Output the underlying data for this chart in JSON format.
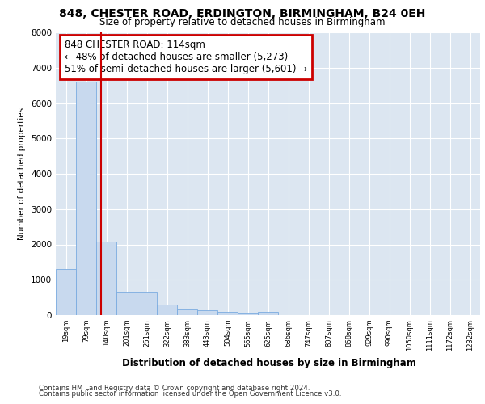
{
  "title_line1": "848, CHESTER ROAD, ERDINGTON, BIRMINGHAM, B24 0EH",
  "title_line2": "Size of property relative to detached houses in Birmingham",
  "xlabel": "Distribution of detached houses by size in Birmingham",
  "ylabel": "Number of detached properties",
  "footnote1": "Contains HM Land Registry data © Crown copyright and database right 2024.",
  "footnote2": "Contains public sector information licensed under the Open Government Licence v3.0.",
  "bin_labels": [
    "19sqm",
    "79sqm",
    "140sqm",
    "201sqm",
    "261sqm",
    "322sqm",
    "383sqm",
    "443sqm",
    "504sqm",
    "565sqm",
    "625sqm",
    "686sqm",
    "747sqm",
    "807sqm",
    "868sqm",
    "929sqm",
    "990sqm",
    "1050sqm",
    "1111sqm",
    "1172sqm",
    "1232sqm"
  ],
  "bar_values": [
    1300,
    6600,
    2080,
    640,
    640,
    300,
    160,
    130,
    90,
    70,
    90,
    0,
    0,
    0,
    0,
    0,
    0,
    0,
    0,
    0,
    0
  ],
  "bar_color": "#c8d9ee",
  "bar_edge_color": "#7aabe0",
  "property_line_x": 1.72,
  "property_line_color": "#cc0000",
  "annotation_box_text": "848 CHESTER ROAD: 114sqm\n← 48% of detached houses are smaller (5,273)\n51% of semi-detached houses are larger (5,601) →",
  "annotation_box_color": "#cc0000",
  "ylim": [
    0,
    8000
  ],
  "yticks": [
    0,
    1000,
    2000,
    3000,
    4000,
    5000,
    6000,
    7000,
    8000
  ],
  "background_color": "#dce6f1",
  "grid_color": "#ffffff",
  "fig_background": "#ffffff"
}
